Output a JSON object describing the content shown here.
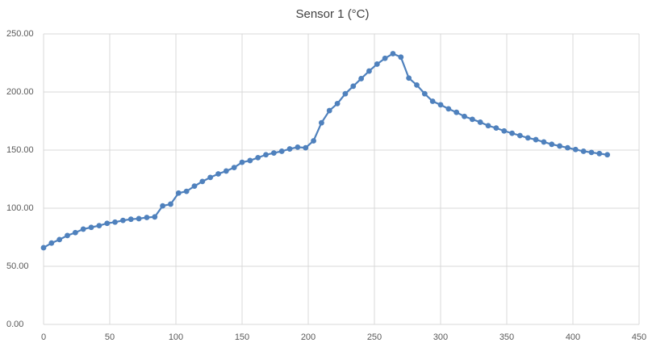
{
  "chart_data": {
    "type": "line",
    "title": "Sensor 1 (°C)",
    "x": [
      0,
      6,
      12,
      18,
      24,
      30,
      36,
      42,
      48,
      54,
      60,
      66,
      72,
      78,
      84,
      90,
      96,
      102,
      108,
      114,
      120,
      126,
      132,
      138,
      144,
      150,
      156,
      162,
      168,
      174,
      180,
      186,
      192,
      198,
      204,
      210,
      216,
      222,
      228,
      234,
      240,
      246,
      252,
      258,
      264,
      270,
      276,
      282,
      288,
      294,
      300,
      306,
      312,
      318,
      324,
      330,
      336,
      342,
      348,
      354,
      360,
      366,
      372,
      378,
      384,
      390,
      396,
      402,
      408,
      414,
      420,
      426
    ],
    "series": [
      {
        "name": "Sensor 1",
        "color": "#4f81bd",
        "values": [
          66,
          70,
          73,
          76.5,
          79,
          82,
          83.5,
          85,
          87,
          88,
          89.5,
          90.5,
          91,
          92,
          92.5,
          102,
          103.5,
          113,
          114.5,
          119,
          123,
          126.5,
          129.5,
          132,
          135,
          139.5,
          141,
          143.5,
          146,
          147.5,
          149,
          151,
          152.5,
          152,
          158,
          173.5,
          184,
          190,
          198.5,
          205,
          211.5,
          218,
          224,
          229,
          233,
          230,
          212,
          206,
          198.5,
          192,
          189,
          185.5,
          182.5,
          179,
          176.5,
          174,
          171,
          169,
          166.5,
          164.5,
          162.5,
          160.5,
          159,
          157,
          155,
          153.5,
          152,
          150.5,
          149,
          148,
          147,
          146
        ]
      }
    ],
    "xlim": [
      0,
      450
    ],
    "xticks": [
      0,
      50,
      100,
      150,
      200,
      250,
      300,
      350,
      400,
      450
    ],
    "ylim": [
      0,
      250
    ],
    "yticks": [
      {
        "value": 0,
        "label": "0.00"
      },
      {
        "value": 50,
        "label": "50.00"
      },
      {
        "value": 100,
        "label": "100.00"
      },
      {
        "value": 150,
        "label": "150.00"
      },
      {
        "value": 200,
        "label": "200.00"
      },
      {
        "value": 250,
        "label": "250.00"
      }
    ],
    "grid": true
  }
}
